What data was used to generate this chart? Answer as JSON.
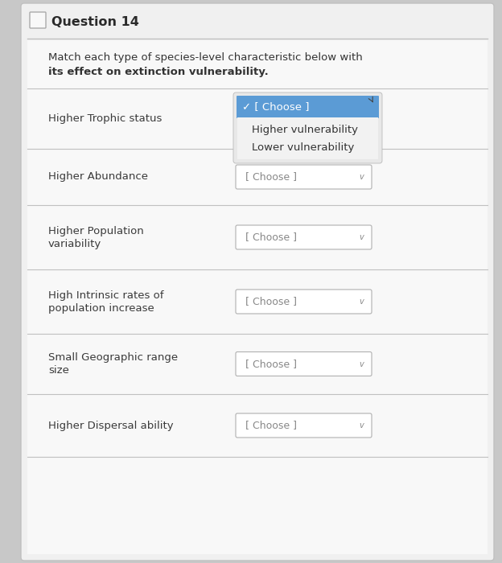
{
  "title": "Question 14",
  "subtitle_line1": "Match each type of species-level characteristic below with",
  "subtitle_line2": "its effect on extinction vulnerability.",
  "bg_color": "#c8c8c8",
  "card_color": "#f0f0f0",
  "inner_card_color": "#f8f8f8",
  "title_fontsize": 11.5,
  "body_fontsize": 9.5,
  "rows": [
    {
      "label_line1": "Higher Trophic status",
      "label_line2": "",
      "is_open": true
    },
    {
      "label_line1": "Higher Abundance",
      "label_line2": "",
      "is_open": false
    },
    {
      "label_line1": "Higher Population",
      "label_line2": "variability",
      "is_open": false
    },
    {
      "label_line1": "High Intrinsic rates of",
      "label_line2": "population increase",
      "is_open": false
    },
    {
      "label_line1": "Small Geographic range",
      "label_line2": "size",
      "is_open": false
    },
    {
      "label_line1": "Higher Dispersal ability",
      "label_line2": "",
      "is_open": false
    }
  ],
  "dropdown_label": "[ Choose ]",
  "dropdown_open_selected": "✓ [ Choose ]",
  "dropdown_option1": "Higher vulnerability",
  "dropdown_option2": "Lower vulnerability",
  "dropdown_blue": "#5b9bd5",
  "dropdown_popup_bg": "#f0f0f0",
  "dropdown_closed_bg": "#ffffff",
  "dropdown_closed_border": "#b0b0b0",
  "text_color": "#333333",
  "label_color": "#3a3a3a",
  "separator_color": "#c0c0c0",
  "title_color": "#2a2a2a"
}
